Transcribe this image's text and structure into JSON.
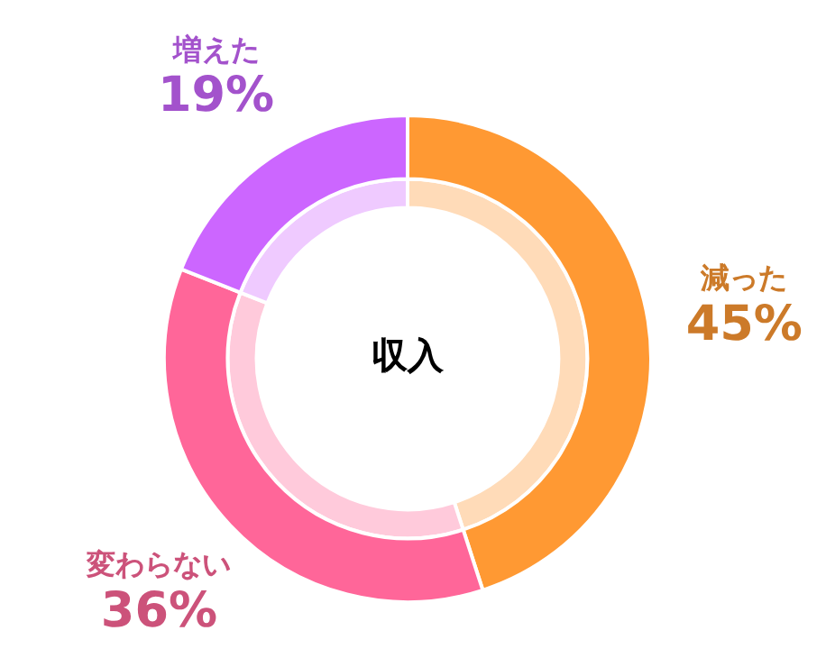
{
  "chart_data": {
    "type": "donut",
    "title": "収入",
    "categories": [
      "減った",
      "変わらない",
      "増えた"
    ],
    "series": [
      {
        "values": [
          45,
          36,
          19
        ],
        "colors": [
          "#ff9933",
          "#ff6699",
          "#cc66ff"
        ]
      },
      {
        "values": [
          45,
          36,
          19
        ],
        "colors": [
          "#ffdbb8",
          "#ffcadb",
          "#efcaff"
        ]
      }
    ],
    "value_labels": [
      "45%",
      "36%",
      "19%"
    ],
    "legend": false
  }
}
